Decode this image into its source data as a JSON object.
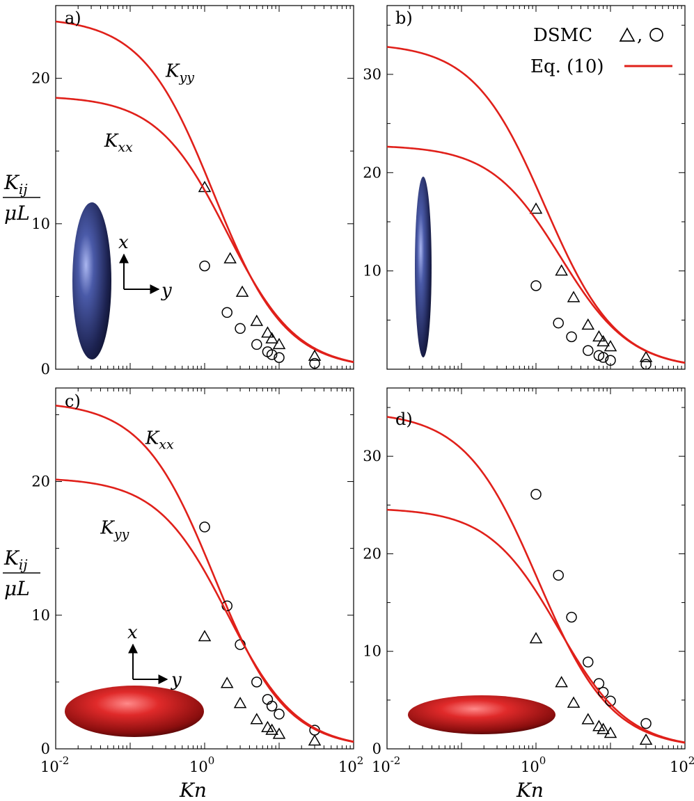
{
  "colors": {
    "curve": "#e0201a",
    "marker": "#000000",
    "prolate": "#2b3566",
    "oblate": "#b01818"
  },
  "shared": {
    "xlabel": "Kn",
    "ylabel_num": "K",
    "ylabel_sub": "ij",
    "ylabel_den": "μL",
    "xtick_base": "10",
    "xtick_exps": [
      "-2",
      "0",
      "2"
    ],
    "x_scale": "log",
    "xlim": [
      0.01,
      100
    ]
  },
  "legend": {
    "dsmc_label": "DSMC",
    "dsmc_markers": [
      ",",
      "triangle",
      "circle"
    ],
    "eq_label": "Eq. (10)",
    "placement": "top-right of panel b"
  },
  "chart_data": [
    {
      "id": "a",
      "panel_label": "a)",
      "type": "line",
      "ylim": [
        0,
        25
      ],
      "yticks": [
        "0",
        "10",
        "20"
      ],
      "inset": "prolate-spheroid",
      "axes_arrows": {
        "x_label": "x",
        "y_label": "y"
      },
      "curve_labels": [
        {
          "main": "K",
          "sub": "yy",
          "kn": 0.3,
          "k": 20.1
        },
        {
          "main": "K",
          "sub": "xx",
          "kn": 0.045,
          "k": 15.3
        }
      ],
      "series": [
        {
          "A": 24.2,
          "b": 0.45,
          "p": 0.9,
          "markers": "triangle",
          "points": [
            [
              1,
              12.5
            ],
            [
              2.2,
              7.6
            ],
            [
              3.2,
              5.3
            ],
            [
              5,
              3.3
            ],
            [
              7,
              2.5
            ],
            [
              8,
              2.1
            ],
            [
              10,
              1.7
            ],
            [
              30,
              0.9
            ]
          ]
        },
        {
          "A": 18.8,
          "b": 0.3,
          "p": 0.92,
          "markers": "circle",
          "points": [
            [
              1,
              7.1
            ],
            [
              2,
              3.9
            ],
            [
              3,
              2.8
            ],
            [
              5,
              1.7
            ],
            [
              7,
              1.2
            ],
            [
              8,
              1.0
            ],
            [
              10,
              0.8
            ],
            [
              30,
              0.4
            ]
          ]
        }
      ]
    },
    {
      "id": "b",
      "panel_label": "b)",
      "type": "line",
      "ylim": [
        0,
        37
      ],
      "yticks": [
        "10",
        "20",
        "30"
      ],
      "inset": "prolate-spheroid-slender",
      "curve_labels": [],
      "series": [
        {
          "A": 33.2,
          "b": 0.45,
          "p": 0.9,
          "markers": "triangle",
          "points": [
            [
              1,
              16.3
            ],
            [
              2.2,
              10.0
            ],
            [
              3.2,
              7.3
            ],
            [
              5,
              4.5
            ],
            [
              7,
              3.3
            ],
            [
              8,
              2.8
            ],
            [
              10,
              2.3
            ],
            [
              30,
              1.2
            ]
          ]
        },
        {
          "A": 22.8,
          "b": 0.28,
          "p": 0.92,
          "markers": "circle",
          "points": [
            [
              1,
              8.5
            ],
            [
              2,
              4.7
            ],
            [
              3,
              3.3
            ],
            [
              5,
              1.9
            ],
            [
              7,
              1.4
            ],
            [
              8,
              1.2
            ],
            [
              10,
              0.9
            ],
            [
              30,
              0.5
            ]
          ]
        }
      ]
    },
    {
      "id": "c",
      "panel_label": "c)",
      "type": "line",
      "ylim": [
        0,
        27
      ],
      "yticks": [
        "0",
        "10",
        "20"
      ],
      "inset": "oblate-spheroid",
      "axes_arrows": {
        "x_label": "x",
        "y_label": "y"
      },
      "curve_labels": [
        {
          "main": "K",
          "sub": "xx",
          "kn": 0.16,
          "k": 22.8
        },
        {
          "main": "K",
          "sub": "yy",
          "kn": 0.04,
          "k": 16.1
        }
      ],
      "series": [
        {
          "A": 26.0,
          "b": 0.45,
          "p": 0.9,
          "markers": "circle",
          "points": [
            [
              1,
              16.6
            ],
            [
              2,
              10.7
            ],
            [
              3,
              7.8
            ],
            [
              5,
              5.0
            ],
            [
              7,
              3.7
            ],
            [
              8,
              3.2
            ],
            [
              10,
              2.6
            ],
            [
              30,
              1.4
            ]
          ]
        },
        {
          "A": 20.3,
          "b": 0.3,
          "p": 0.92,
          "markers": "triangle",
          "points": [
            [
              1,
              8.4
            ],
            [
              2,
              4.9
            ],
            [
              3,
              3.4
            ],
            [
              5,
              2.2
            ],
            [
              7,
              1.6
            ],
            [
              8,
              1.4
            ],
            [
              10,
              1.1
            ],
            [
              30,
              0.6
            ]
          ]
        }
      ]
    },
    {
      "id": "d",
      "panel_label": "d)",
      "type": "line",
      "ylim": [
        0,
        37
      ],
      "yticks": [
        "0",
        "10",
        "20",
        "30"
      ],
      "inset": "oblate-spheroid-flat",
      "curve_labels": [],
      "series": [
        {
          "A": 34.6,
          "b": 0.55,
          "p": 0.88,
          "markers": "circle",
          "points": [
            [
              1,
              26.1
            ],
            [
              2,
              17.8
            ],
            [
              3,
              13.5
            ],
            [
              5,
              8.9
            ],
            [
              7,
              6.7
            ],
            [
              8,
              5.8
            ],
            [
              10,
              4.9
            ],
            [
              30,
              2.6
            ]
          ]
        },
        {
          "A": 24.7,
          "b": 0.3,
          "p": 0.92,
          "markers": "triangle",
          "points": [
            [
              1,
              11.3
            ],
            [
              2.2,
              6.8
            ],
            [
              3.2,
              4.7
            ],
            [
              5,
              3.0
            ],
            [
              7,
              2.3
            ],
            [
              8,
              2.0
            ],
            [
              10,
              1.6
            ],
            [
              30,
              0.9
            ]
          ]
        }
      ]
    }
  ]
}
